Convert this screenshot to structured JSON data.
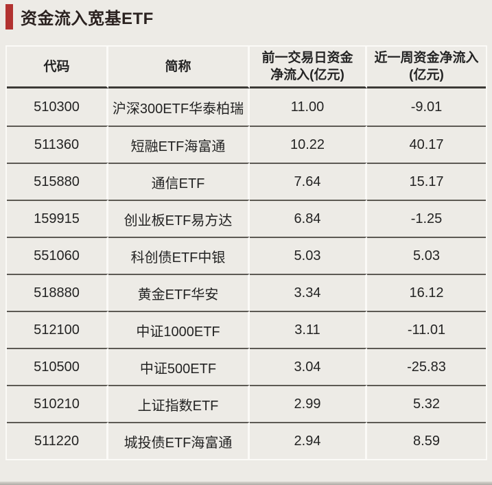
{
  "page": {
    "background_color": "#edebe6",
    "accent_color": "#b23230",
    "divider_light_color": "#fbfaf7",
    "divider_dark_color": "#5c5953",
    "header_rule_color": "#3c3a36"
  },
  "header": {
    "title": "资金流入宽基ETF"
  },
  "chart_data": {
    "type": "table",
    "title": "资金流入宽基ETF",
    "columns": [
      "代码",
      "简称",
      "前一交易日资金净流入(亿元)",
      "近一周资金净流入(亿元)"
    ],
    "column_headers_display": {
      "0": "代码",
      "1": "简称",
      "2": "前一交易日资金\n净流入(亿元)",
      "3": "近一周资金净流入\n(亿元)"
    },
    "column_keys": [
      "code",
      "name",
      "prev_day_net_inflow",
      "week_net_inflow"
    ],
    "rows": [
      [
        "510300",
        "沪深300ETF华泰柏瑞",
        "11.00",
        "-9.01"
      ],
      [
        "511360",
        "短融ETF海富通",
        "10.22",
        "40.17"
      ],
      [
        "515880",
        "通信ETF",
        "7.64",
        "15.17"
      ],
      [
        "159915",
        "创业板ETF易方达",
        "6.84",
        "-1.25"
      ],
      [
        "551060",
        "科创债ETF中银",
        "5.03",
        "5.03"
      ],
      [
        "518880",
        "黄金ETF华安",
        "3.34",
        "16.12"
      ],
      [
        "512100",
        "中证1000ETF",
        "3.11",
        "-11.01"
      ],
      [
        "510500",
        "中证500ETF",
        "3.04",
        "-25.83"
      ],
      [
        "510210",
        "上证指数ETF",
        "2.99",
        "5.32"
      ],
      [
        "511220",
        "城投债ETF海富通",
        "2.94",
        "8.59"
      ]
    ]
  }
}
